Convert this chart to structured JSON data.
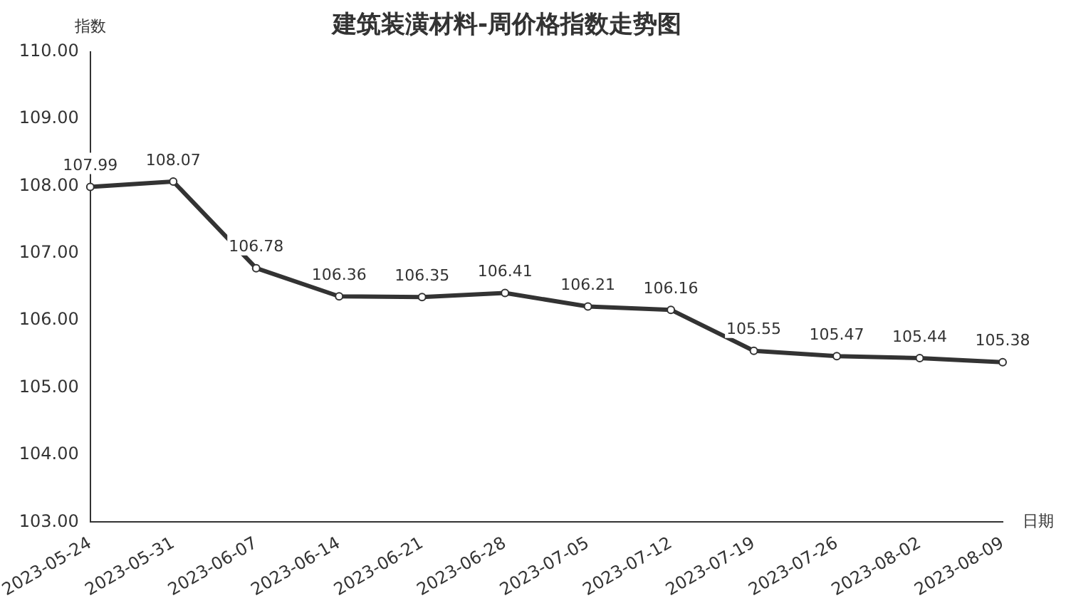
{
  "chart_data": {
    "type": "line",
    "title": "建筑装潢材料-周价格指数走势图",
    "xlabel": "日期",
    "ylabel": "指数",
    "categories": [
      "2023-05-24",
      "2023-05-31",
      "2023-06-07",
      "2023-06-14",
      "2023-06-21",
      "2023-06-28",
      "2023-07-05",
      "2023-07-12",
      "2023-07-19",
      "2023-07-26",
      "2023-08-02",
      "2023-08-09"
    ],
    "values": [
      107.99,
      108.07,
      106.78,
      106.36,
      106.35,
      106.41,
      106.21,
      106.16,
      105.55,
      105.47,
      105.44,
      105.38
    ],
    "color": "#333333",
    "ylim": [
      103,
      110
    ],
    "yticks": [
      {
        "value": 103,
        "label": "103.00"
      },
      {
        "value": 104,
        "label": "104.00"
      },
      {
        "value": 105,
        "label": "105.00"
      },
      {
        "value": 106,
        "label": "106.00"
      },
      {
        "value": 107,
        "label": "107.00"
      },
      {
        "value": 108,
        "label": "108.00"
      },
      {
        "value": 109,
        "label": "109.00"
      },
      {
        "value": 110,
        "label": "110.00"
      }
    ],
    "data_labels": true,
    "marker": "circle",
    "line_style": "solid",
    "grid": false,
    "legend": false
  }
}
